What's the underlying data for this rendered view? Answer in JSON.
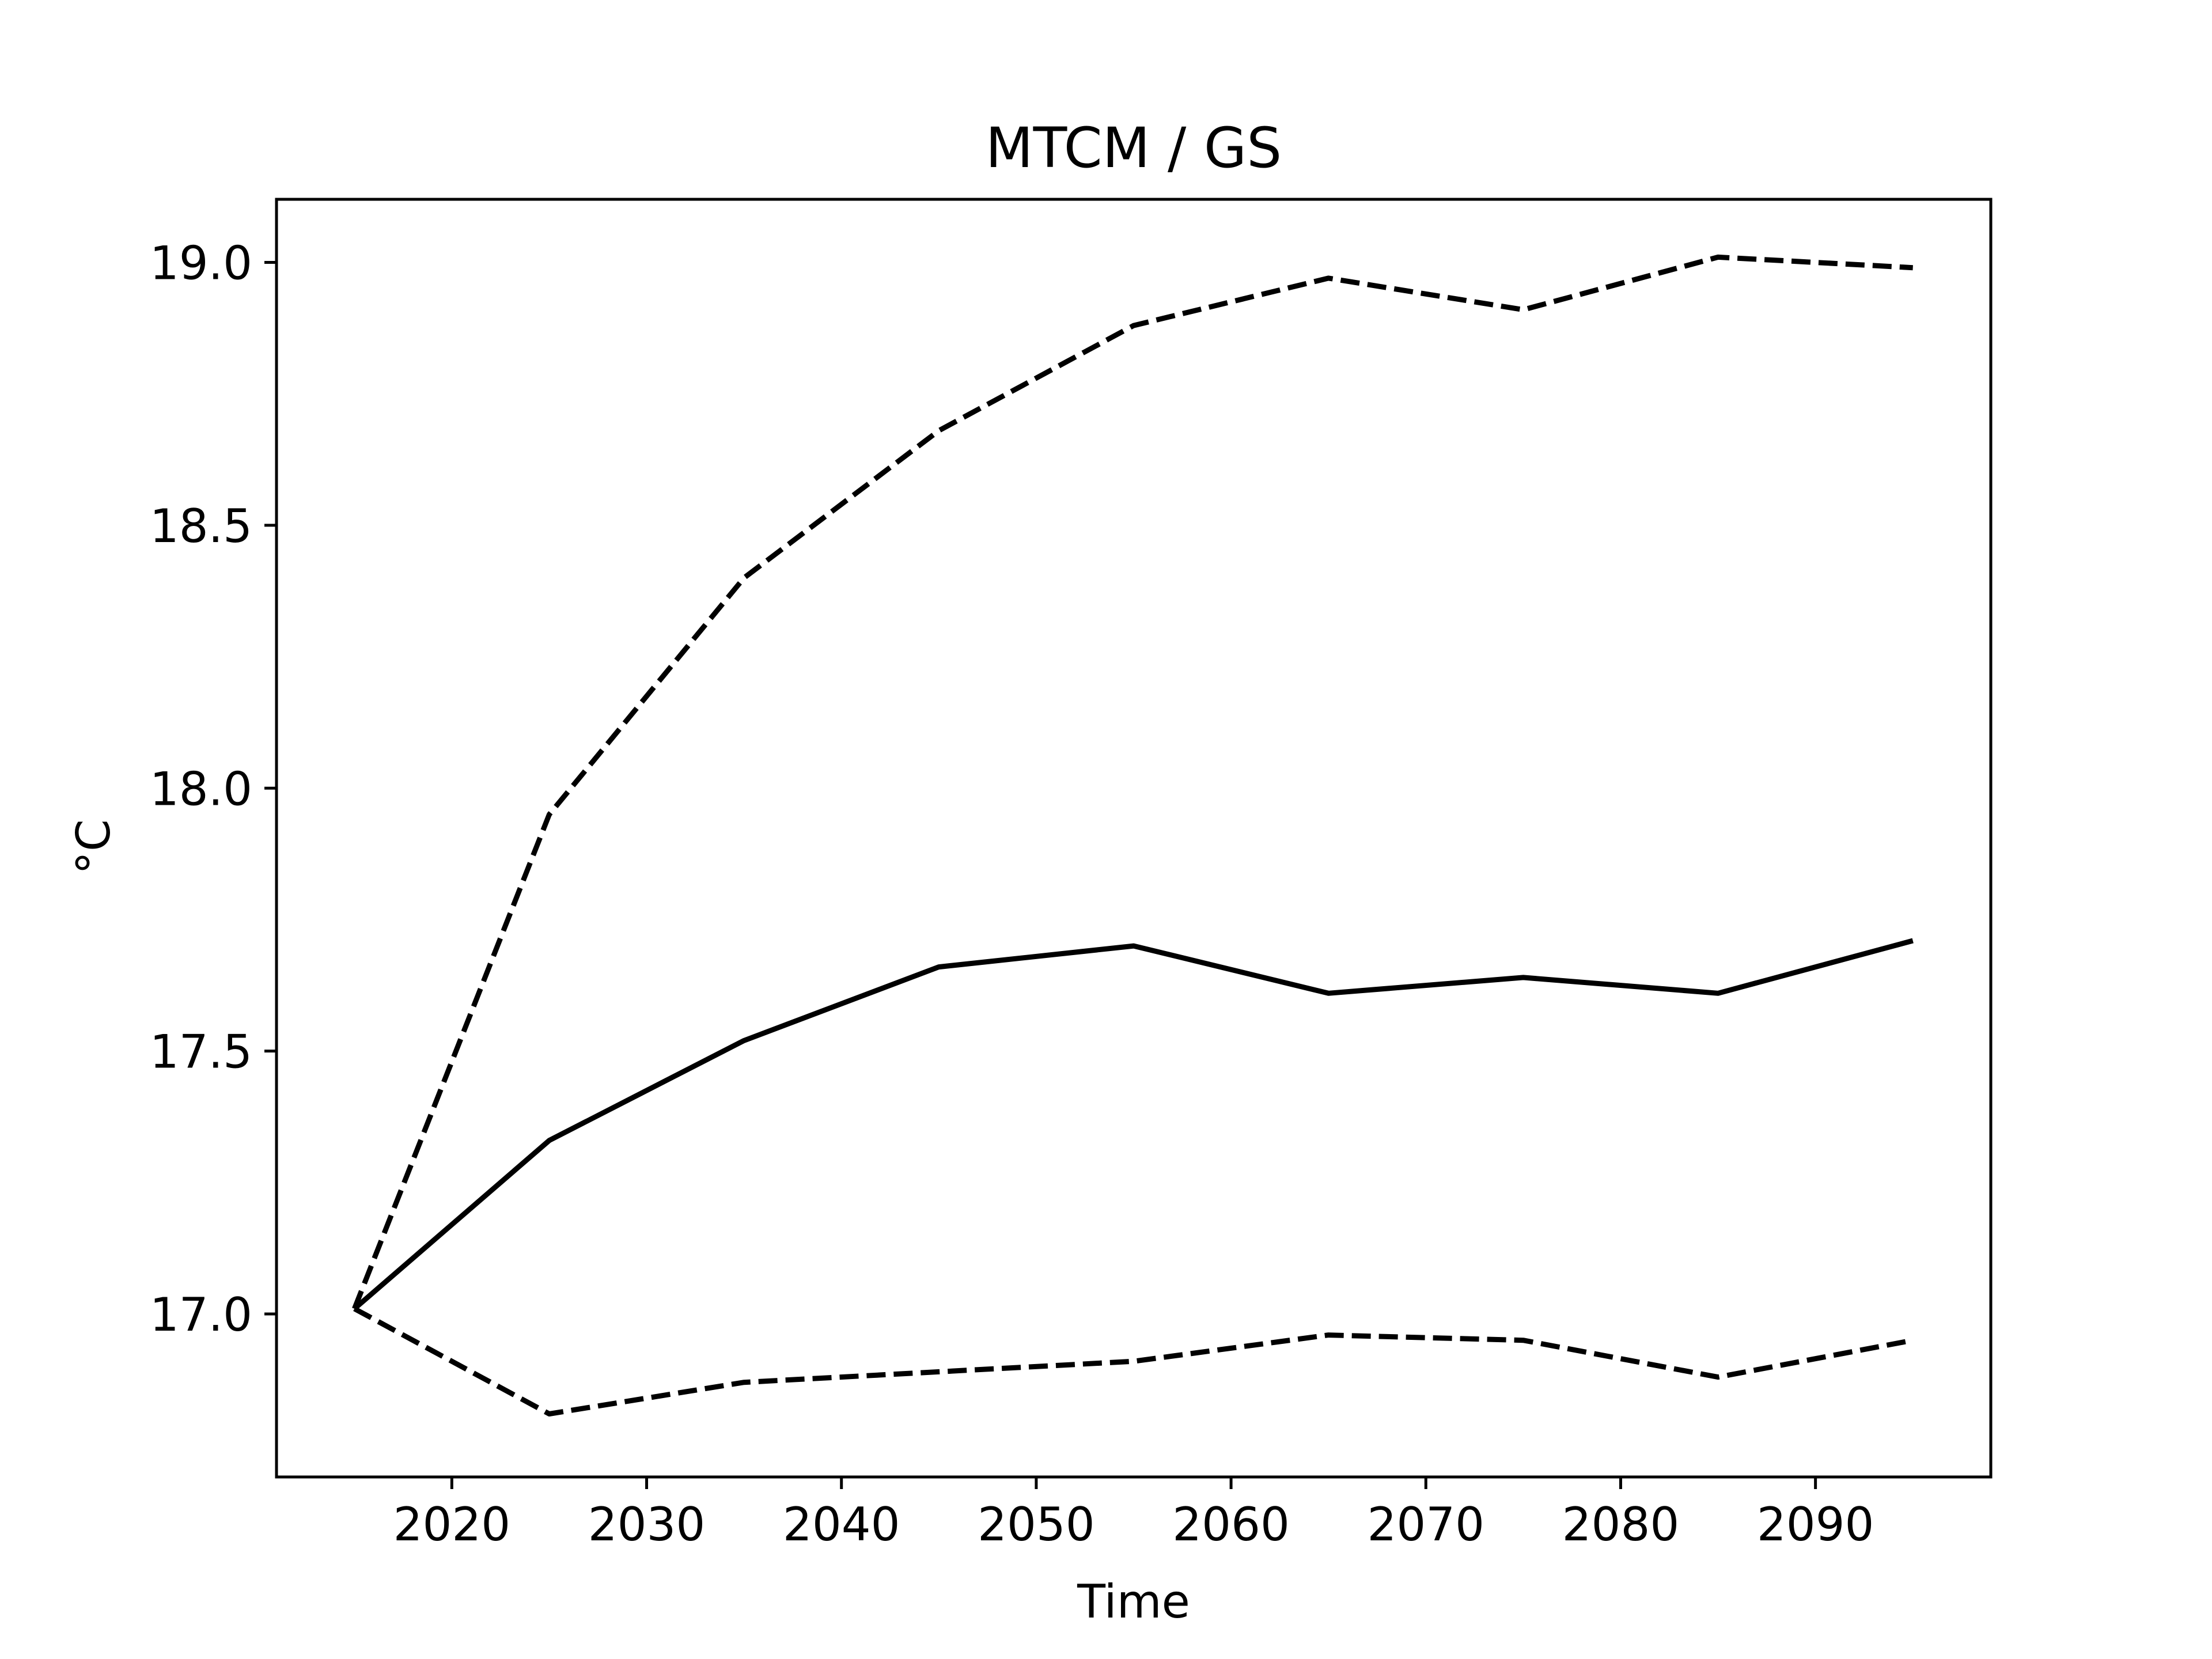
{
  "chart_data": {
    "type": "line",
    "title": "MTCM / GS",
    "xlabel": "Time",
    "ylabel": "°C",
    "x": [
      2015,
      2025,
      2035,
      2045,
      2055,
      2065,
      2075,
      2085,
      2095
    ],
    "xlim": [
      2011,
      2099
    ],
    "ylim": [
      16.69,
      19.12
    ],
    "xticks": [
      2020,
      2030,
      2040,
      2050,
      2060,
      2070,
      2080,
      2090
    ],
    "xtick_labels": [
      "2020",
      "2030",
      "2040",
      "2050",
      "2060",
      "2070",
      "2080",
      "2090"
    ],
    "yticks": [
      17.0,
      17.5,
      18.0,
      18.5,
      19.0
    ],
    "ytick_labels": [
      "17.0",
      "17.5",
      "18.0",
      "18.5",
      "19.0"
    ],
    "grid": false,
    "legend": false,
    "series": [
      {
        "style": "dashed",
        "color": "#000000",
        "values": [
          17.01,
          17.95,
          18.4,
          18.68,
          18.88,
          18.97,
          18.91,
          19.01,
          18.99
        ]
      },
      {
        "style": "solid",
        "color": "#000000",
        "values": [
          17.01,
          17.33,
          17.52,
          17.66,
          17.7,
          17.61,
          17.64,
          17.61,
          17.71
        ]
      },
      {
        "style": "dashed",
        "color": "#000000",
        "values": [
          17.01,
          16.81,
          16.87,
          16.89,
          16.91,
          16.96,
          16.95,
          16.88,
          16.95
        ]
      }
    ]
  }
}
